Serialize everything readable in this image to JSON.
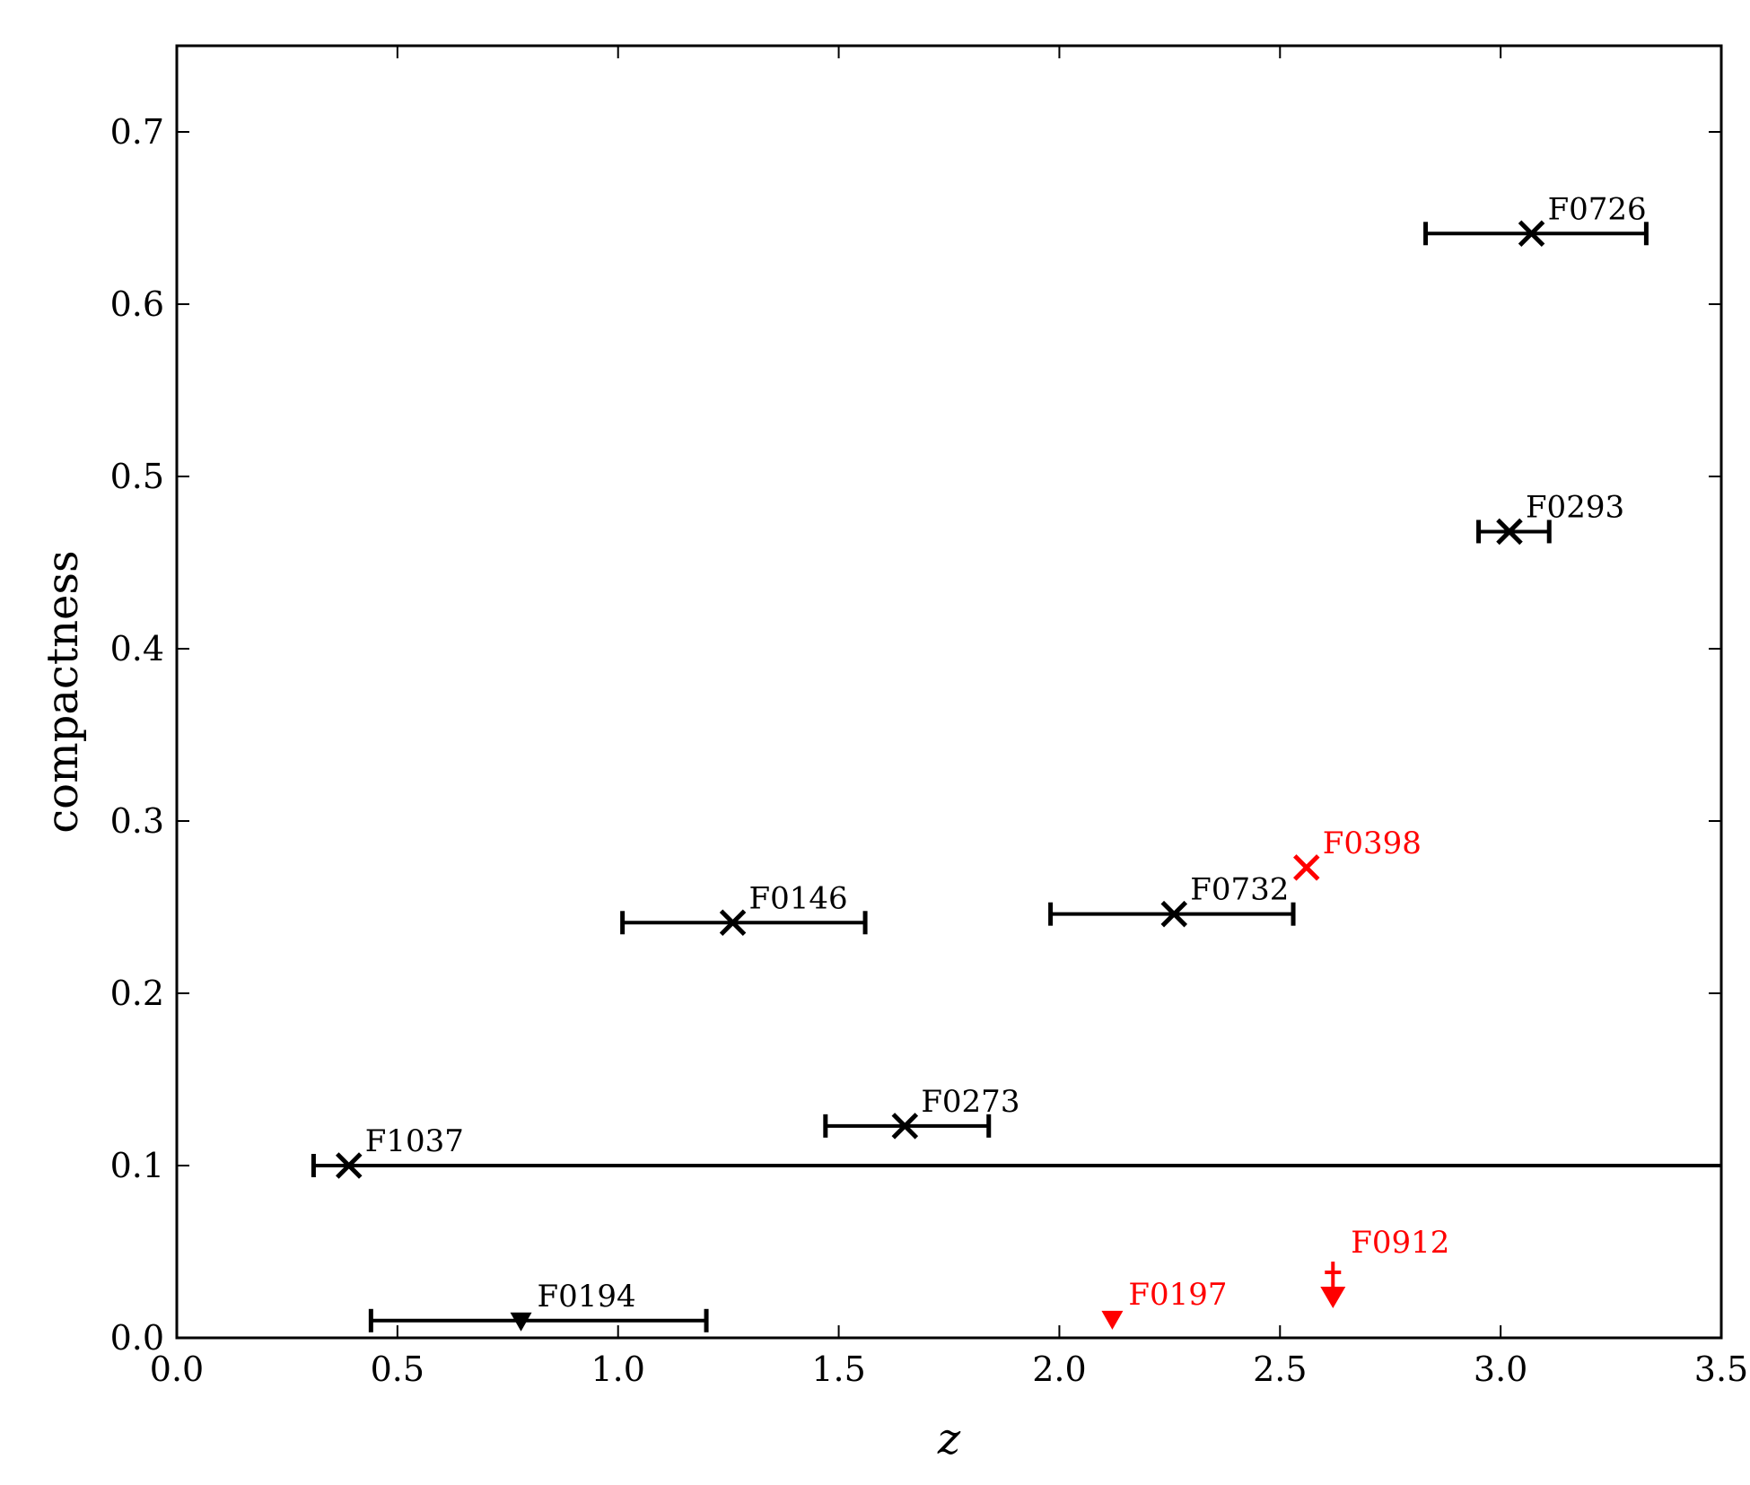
{
  "chart_data": {
    "type": "scatter",
    "title": "",
    "xlabel": "z",
    "ylabel": "compactness",
    "xlim": [
      0.0,
      3.5
    ],
    "ylim": [
      0.0,
      0.75
    ],
    "grid": false,
    "x_ticks": [
      0.0,
      0.5,
      1.0,
      1.5,
      2.0,
      2.5,
      3.0,
      3.5
    ],
    "y_ticks": [
      0.0,
      0.1,
      0.2,
      0.3,
      0.4,
      0.5,
      0.6,
      0.7
    ],
    "x_tick_labels": [
      "0.0",
      "0.5",
      "1.0",
      "1.5",
      "2.0",
      "2.5",
      "3.0",
      "3.5"
    ],
    "y_tick_labels": [
      "0.0",
      "0.1",
      "0.2",
      "0.3",
      "0.4",
      "0.5",
      "0.6",
      "0.7"
    ],
    "colors": {
      "default": "#000000",
      "highlight": "#ff0000"
    },
    "points": [
      {
        "label": "F0726",
        "x": 3.07,
        "y": 0.641,
        "xmin": 2.83,
        "xmax": 3.33,
        "marker": "x",
        "color": "#000000"
      },
      {
        "label": "F0293",
        "x": 3.02,
        "y": 0.468,
        "xmin": 2.95,
        "xmax": 3.11,
        "marker": "x",
        "color": "#000000"
      },
      {
        "label": "F0398",
        "x": 2.56,
        "y": 0.273,
        "marker": "x",
        "color": "#ff0000"
      },
      {
        "label": "F0732",
        "x": 2.26,
        "y": 0.246,
        "xmin": 1.98,
        "xmax": 2.53,
        "marker": "x",
        "color": "#000000"
      },
      {
        "label": "F0146",
        "x": 1.26,
        "y": 0.241,
        "xmin": 1.01,
        "xmax": 1.56,
        "marker": "x",
        "color": "#000000"
      },
      {
        "label": "F0273",
        "x": 1.65,
        "y": 0.123,
        "xmin": 1.47,
        "xmax": 1.84,
        "marker": "x",
        "color": "#000000"
      },
      {
        "label": "F1037",
        "x": 0.39,
        "y": 0.1,
        "xmin": 0.31,
        "xmax": 3.5,
        "marker": "x",
        "color": "#000000"
      },
      {
        "label": "F0194",
        "x": 0.78,
        "y": 0.01,
        "xmin": 0.44,
        "xmax": 1.2,
        "marker": "triangle-down",
        "color": "#000000"
      },
      {
        "label": "F0197",
        "x": 2.12,
        "y": 0.011,
        "marker": "triangle-down",
        "color": "#ff0000"
      },
      {
        "label": "F0912",
        "x": 2.62,
        "y": 0.038,
        "marker": "upper-limit",
        "color": "#ff0000"
      }
    ]
  }
}
